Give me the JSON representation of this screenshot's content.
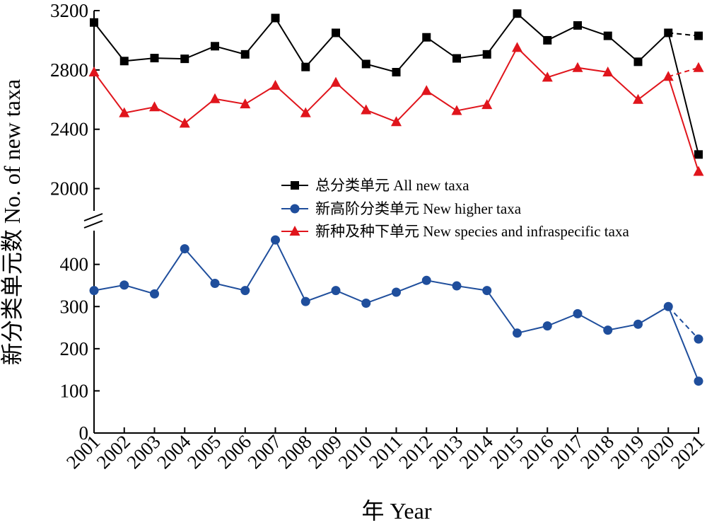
{
  "chart_data": {
    "type": "line",
    "title": "",
    "xlabel": "年 Year",
    "ylabel": "新分类单元数 No. of new taxa",
    "x": [
      "2001",
      "2002",
      "2003",
      "2004",
      "2005",
      "2006",
      "2007",
      "2008",
      "2009",
      "2010",
      "2011",
      "2012",
      "2013",
      "2014",
      "2015",
      "2016",
      "2017",
      "2018",
      "2019",
      "2020",
      "2021"
    ],
    "axis_break": true,
    "upper_ylim": [
      1850,
      3200
    ],
    "upper_yticks": [
      "2000",
      "2400",
      "2800",
      "3200"
    ],
    "lower_ylim": [
      0,
      480
    ],
    "lower_yticks": [
      "0",
      "100",
      "200",
      "300",
      "400"
    ],
    "grid": false,
    "legend_position": "center-right",
    "series": [
      {
        "name": "总分类单元 All new taxa",
        "panel": "upper",
        "color": "#000000",
        "marker": "square",
        "values": [
          3120,
          2860,
          2880,
          2875,
          2960,
          2905,
          3150,
          2820,
          3050,
          2840,
          2785,
          3020,
          2878,
          2905,
          3180,
          3000,
          3100,
          3030,
          2855,
          3050,
          2230
        ],
        "dashed_2021": 3030
      },
      {
        "name": "新高阶分类单元 New higher taxa",
        "panel": "lower",
        "color": "#1f4e9c",
        "marker": "circle",
        "values": [
          338,
          351,
          330,
          437,
          355,
          338,
          458,
          312,
          338,
          308,
          334,
          362,
          349,
          338,
          237,
          254,
          283,
          244,
          258,
          300,
          123
        ],
        "dashed_2021": 223
      },
      {
        "name": "新种及种下单元 New species and infraspecific taxa",
        "panel": "upper",
        "color": "#e0151c",
        "marker": "triangle",
        "values": [
          2785,
          2510,
          2550,
          2440,
          2605,
          2570,
          2695,
          2510,
          2715,
          2530,
          2450,
          2660,
          2525,
          2565,
          2950,
          2750,
          2815,
          2785,
          2600,
          2755,
          2115
        ],
        "dashed_2021": 2815
      }
    ]
  }
}
